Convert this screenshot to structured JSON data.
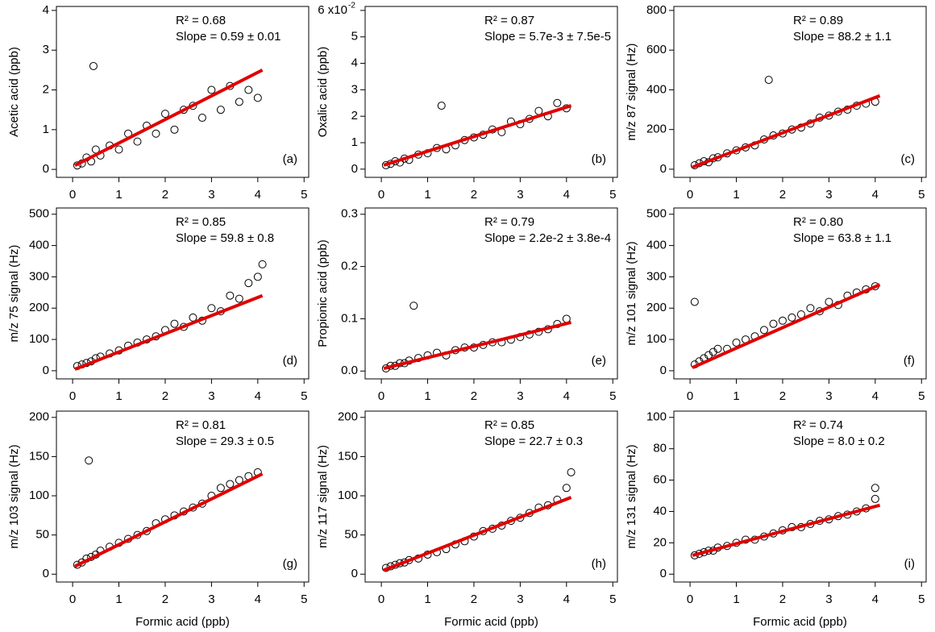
{
  "chart_data": [
    {
      "type": "scatter",
      "ylabel": "Acetic acid (ppb)",
      "r2": "R² = 0.68",
      "slope": "Slope = 0.59 ± 0.01",
      "panel": "(a)",
      "xlim": [
        -0.35,
        5.1
      ],
      "ylim": [
        -0.2,
        4.1
      ],
      "xticks": [
        0,
        1,
        2,
        3,
        4,
        5
      ],
      "yticks": [
        0,
        1,
        2,
        3,
        4
      ],
      "points": {
        "color": "#000000",
        "x": [
          0.1,
          0.2,
          0.3,
          0.4,
          0.5,
          0.6,
          0.8,
          1.0,
          1.2,
          1.4,
          1.6,
          1.8,
          2.0,
          2.2,
          2.4,
          2.6,
          2.8,
          3.0,
          3.2,
          3.4,
          3.6,
          3.8,
          4.0,
          0.45
        ],
        "y": [
          0.1,
          0.15,
          0.3,
          0.2,
          0.5,
          0.35,
          0.6,
          0.5,
          0.9,
          0.7,
          1.1,
          0.9,
          1.4,
          1.0,
          1.5,
          1.6,
          1.3,
          2.0,
          1.5,
          2.1,
          1.7,
          2.0,
          1.8,
          2.6
        ]
      },
      "fit": {
        "color": "#e00000",
        "x": [
          0.05,
          4.1
        ],
        "y": [
          0.1,
          2.5
        ]
      }
    },
    {
      "type": "scatter",
      "ylabel": "Oxalic acid (ppb)",
      "r2": "R² = 0.87",
      "slope": "Slope = 5.7e-3 ± 7.5e-5",
      "panel": "(b)",
      "xlim": [
        -0.35,
        5.1
      ],
      "ylim": [
        -0.31,
        6.15
      ],
      "xticks": [
        0,
        1,
        2,
        3,
        4,
        5
      ],
      "yticks": [
        0,
        1,
        2,
        3,
        4,
        5,
        {
          "value": 6,
          "label": "6 x10"
        }
      ],
      "y_exponent": "-2",
      "points": {
        "color": "#000000",
        "x": [
          0.1,
          0.2,
          0.3,
          0.4,
          0.5,
          0.6,
          0.8,
          1.0,
          1.2,
          1.4,
          1.6,
          1.8,
          2.0,
          2.2,
          2.4,
          2.6,
          2.8,
          3.0,
          3.2,
          3.4,
          3.6,
          3.8,
          4.0,
          1.3
        ],
        "y": [
          0.15,
          0.2,
          0.3,
          0.25,
          0.4,
          0.35,
          0.55,
          0.6,
          0.8,
          0.75,
          0.9,
          1.1,
          1.2,
          1.3,
          1.5,
          1.4,
          1.8,
          1.7,
          1.9,
          2.2,
          2.0,
          2.5,
          2.3,
          2.4
        ]
      },
      "fit": {
        "color": "#e00000",
        "x": [
          0.05,
          4.1
        ],
        "y": [
          0.15,
          2.4
        ]
      }
    },
    {
      "type": "scatter",
      "ylabel": "m/z 87 signal (Hz)",
      "r2": "R² = 0.89",
      "slope": "Slope = 88.2 ± 1.1",
      "panel": "(c)",
      "xlim": [
        -0.35,
        5.1
      ],
      "ylim": [
        -41,
        820
      ],
      "xticks": [
        0,
        1,
        2,
        3,
        4,
        5
      ],
      "yticks": [
        0,
        200,
        400,
        600,
        800
      ],
      "points": {
        "color": "#000000",
        "x": [
          0.1,
          0.2,
          0.3,
          0.4,
          0.5,
          0.6,
          0.8,
          1.0,
          1.2,
          1.4,
          1.6,
          1.8,
          2.0,
          2.2,
          2.4,
          2.6,
          2.8,
          3.0,
          3.2,
          3.4,
          3.6,
          3.8,
          4.0,
          1.7
        ],
        "y": [
          20,
          30,
          40,
          35,
          55,
          60,
          80,
          95,
          110,
          120,
          150,
          170,
          180,
          200,
          210,
          230,
          260,
          270,
          290,
          300,
          320,
          330,
          340,
          450
        ]
      },
      "fit": {
        "color": "#e00000",
        "x": [
          0.05,
          4.1
        ],
        "y": [
          10,
          370
        ]
      }
    },
    {
      "type": "scatter",
      "ylabel": "m/z 75 signal (Hz)",
      "r2": "R² = 0.85",
      "slope": "Slope = 59.8 ± 0.8",
      "panel": "(d)",
      "xlim": [
        -0.35,
        5.1
      ],
      "ylim": [
        -26,
        520
      ],
      "xticks": [
        0,
        1,
        2,
        3,
        4,
        5
      ],
      "yticks": [
        0,
        100,
        200,
        300,
        400,
        500
      ],
      "points": {
        "color": "#000000",
        "x": [
          0.1,
          0.2,
          0.3,
          0.4,
          0.5,
          0.6,
          0.8,
          1.0,
          1.2,
          1.4,
          1.6,
          1.8,
          2.0,
          2.2,
          2.4,
          2.6,
          2.8,
          3.0,
          3.2,
          3.4,
          3.6,
          3.8,
          4.0,
          4.1
        ],
        "y": [
          15,
          20,
          25,
          30,
          40,
          45,
          55,
          65,
          80,
          90,
          100,
          110,
          130,
          150,
          140,
          170,
          160,
          200,
          190,
          240,
          230,
          280,
          300,
          340
        ]
      },
      "fit": {
        "color": "#e00000",
        "x": [
          0.05,
          4.1
        ],
        "y": [
          5,
          240
        ]
      }
    },
    {
      "type": "scatter",
      "ylabel": "Propionic acid (ppb)",
      "r2": "R² = 0.79",
      "slope": "Slope = 2.2e-2 ± 3.8e-4",
      "panel": "(e)",
      "xlim": [
        -0.35,
        5.1
      ],
      "ylim": [
        -0.015,
        0.312
      ],
      "xticks": [
        0,
        1,
        2,
        3,
        4,
        5
      ],
      "yticks": [
        {
          "value": 0,
          "label": "0.0"
        },
        0.1,
        0.2,
        0.3
      ],
      "points": {
        "color": "#000000",
        "x": [
          0.1,
          0.2,
          0.3,
          0.4,
          0.5,
          0.6,
          0.8,
          1.0,
          1.2,
          1.4,
          1.6,
          1.8,
          2.0,
          2.2,
          2.4,
          2.6,
          2.8,
          3.0,
          3.2,
          3.4,
          3.6,
          3.8,
          4.0,
          0.7
        ],
        "y": [
          0.005,
          0.01,
          0.01,
          0.015,
          0.015,
          0.02,
          0.025,
          0.03,
          0.035,
          0.03,
          0.04,
          0.045,
          0.045,
          0.05,
          0.055,
          0.055,
          0.06,
          0.065,
          0.07,
          0.075,
          0.08,
          0.09,
          0.1,
          0.125
        ]
      },
      "fit": {
        "color": "#e00000",
        "x": [
          0.05,
          4.1
        ],
        "y": [
          0.005,
          0.093
        ]
      }
    },
    {
      "type": "scatter",
      "ylabel": "m/z 101 signal (Hz)",
      "r2": "R² = 0.80",
      "slope": "Slope = 63.8 ± 1.1",
      "panel": "(f)",
      "xlim": [
        -0.35,
        5.1
      ],
      "ylim": [
        -26,
        520
      ],
      "xticks": [
        0,
        1,
        2,
        3,
        4,
        5
      ],
      "yticks": [
        0,
        100,
        200,
        300,
        400,
        500
      ],
      "points": {
        "color": "#000000",
        "x": [
          0.1,
          0.2,
          0.3,
          0.4,
          0.5,
          0.6,
          0.8,
          1.0,
          1.2,
          1.4,
          1.6,
          1.8,
          2.0,
          2.2,
          2.4,
          2.6,
          2.8,
          3.0,
          3.2,
          3.4,
          3.6,
          3.8,
          4.0,
          0.1
        ],
        "y": [
          20,
          30,
          40,
          50,
          60,
          70,
          70,
          90,
          100,
          110,
          130,
          150,
          160,
          170,
          180,
          200,
          190,
          220,
          210,
          240,
          250,
          260,
          270,
          220
        ]
      },
      "fit": {
        "color": "#e00000",
        "x": [
          0.05,
          4.1
        ],
        "y": [
          10,
          275
        ]
      }
    },
    {
      "type": "scatter",
      "ylabel": "m/z 103 signal (Hz)",
      "xlabel": "Formic acid (ppb)",
      "r2": "R² = 0.81",
      "slope": "Slope = 29.3 ± 0.5",
      "panel": "(g)",
      "xlim": [
        -0.35,
        5.1
      ],
      "ylim": [
        -10,
        208
      ],
      "xticks": [
        0,
        1,
        2,
        3,
        4,
        5
      ],
      "yticks": [
        0,
        50,
        100,
        150,
        200
      ],
      "points": {
        "color": "#000000",
        "x": [
          0.1,
          0.2,
          0.3,
          0.4,
          0.5,
          0.6,
          0.8,
          1.0,
          1.2,
          1.4,
          1.6,
          1.8,
          2.0,
          2.2,
          2.4,
          2.6,
          2.8,
          3.0,
          3.2,
          3.4,
          3.6,
          3.8,
          4.0,
          0.35
        ],
        "y": [
          12,
          15,
          20,
          22,
          25,
          30,
          35,
          40,
          45,
          50,
          55,
          65,
          70,
          75,
          80,
          85,
          90,
          100,
          110,
          115,
          120,
          125,
          130,
          145
        ]
      },
      "fit": {
        "color": "#e00000",
        "x": [
          0.05,
          4.1
        ],
        "y": [
          10,
          128
        ]
      }
    },
    {
      "type": "scatter",
      "ylabel": "m/z 117 signal (Hz)",
      "xlabel": "Formic acid (ppb)",
      "r2": "R² = 0.85",
      "slope": "Slope = 22.7 ± 0.3",
      "panel": "(h)",
      "xlim": [
        -0.35,
        5.1
      ],
      "ylim": [
        -10,
        208
      ],
      "xticks": [
        0,
        1,
        2,
        3,
        4,
        5
      ],
      "yticks": [
        0,
        50,
        100,
        150,
        200
      ],
      "points": {
        "color": "#000000",
        "x": [
          0.1,
          0.2,
          0.3,
          0.4,
          0.5,
          0.6,
          0.8,
          1.0,
          1.2,
          1.4,
          1.6,
          1.8,
          2.0,
          2.2,
          2.4,
          2.6,
          2.8,
          3.0,
          3.2,
          3.4,
          3.6,
          3.8,
          4.0,
          4.1
        ],
        "y": [
          8,
          10,
          12,
          14,
          15,
          18,
          20,
          25,
          28,
          32,
          38,
          42,
          48,
          55,
          58,
          62,
          68,
          72,
          78,
          85,
          88,
          95,
          110,
          130
        ]
      },
      "fit": {
        "color": "#e00000",
        "x": [
          0.05,
          4.1
        ],
        "y": [
          5,
          98
        ]
      }
    },
    {
      "type": "scatter",
      "ylabel": "m/z 131 signal (Hz)",
      "xlabel": "Formic acid (ppb)",
      "r2": "R² = 0.74",
      "slope": "Slope = 8.0 ± 0.2",
      "panel": "(i)",
      "xlim": [
        -0.35,
        5.1
      ],
      "ylim": [
        -5,
        104
      ],
      "xticks": [
        0,
        1,
        2,
        3,
        4,
        5
      ],
      "yticks": [
        0,
        20,
        40,
        60,
        80,
        100
      ],
      "points": {
        "color": "#000000",
        "x": [
          0.1,
          0.2,
          0.3,
          0.4,
          0.5,
          0.6,
          0.8,
          1.0,
          1.2,
          1.4,
          1.6,
          1.8,
          2.0,
          2.2,
          2.4,
          2.6,
          2.8,
          3.0,
          3.2,
          3.4,
          3.6,
          3.8,
          4.0,
          4.0
        ],
        "y": [
          12,
          13,
          14,
          15,
          15,
          17,
          18,
          20,
          22,
          22,
          24,
          26,
          28,
          30,
          30,
          32,
          34,
          35,
          37,
          38,
          40,
          42,
          48,
          55
        ]
      },
      "fit": {
        "color": "#e00000",
        "x": [
          0.05,
          4.1
        ],
        "y": [
          12,
          44
        ]
      }
    }
  ]
}
